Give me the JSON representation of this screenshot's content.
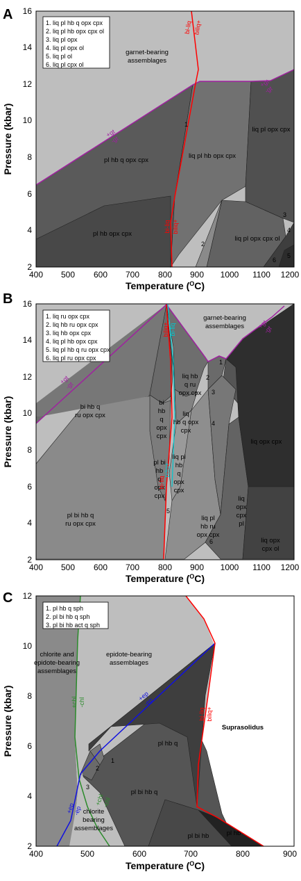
{
  "colors": {
    "garnet_bg": "#bebebe",
    "dark_field": "#4f4f4f",
    "darker_field": "#3c3c3c",
    "mid_field": "#6f6f6f",
    "light_field": "#8d8d8d",
    "solidus": "#ff0000",
    "garnet_line": "#a020a0",
    "biotite_cyan": "#00c8d0",
    "epidote_line": "#1010e0",
    "chlorite_line": "#2a8a2a"
  },
  "panels": [
    {
      "label": "A",
      "xlabel": "Temperature (°C)",
      "xlabel_pre": "Temperature (",
      "xlabel_sup": "O",
      "xlabel_post": "C)",
      "ylabel": "Pressure (kbar)",
      "xticks": [
        "400",
        "500",
        "600",
        "700",
        "800",
        "900",
        "1000",
        "1100",
        "1200"
      ],
      "yticks": [
        "2",
        "4",
        "6",
        "8",
        "10",
        "12",
        "14",
        "16"
      ],
      "legend": [
        "1. liq pl hb q opx cpx",
        "2. liq pl hb opx cpx ol",
        "3. liq pl opx",
        "4. liq pl opx ol",
        "5. liq pl ol",
        "6. liq pl cpx ol"
      ],
      "fields": {
        "garnet": [
          "garnet-bearing",
          "assemblages"
        ],
        "pl_hb_q_opx_cpx": "pl hb q opx cpx",
        "pl_hb_opx_cpx": "pl hb opx cpx",
        "liq_pl_hb_opx_cpx": "liq pl hb opx cpx",
        "liq_pl_opx_cpx": "liq pl opx cpx",
        "liq_pl_opx_cpx_ol": "liq pl opx cpx ol"
      },
      "numbers": [
        "1",
        "2",
        "3",
        "4",
        "5",
        "6"
      ],
      "reactions": {
        "plus_gt": "+gt",
        "minus_gt": "-gt",
        "bi": "bi",
        "plus_liq": "liq+",
        "minus_liq": "-liq"
      }
    },
    {
      "label": "B",
      "xlabel": "Temperature (°C)",
      "xlabel_pre": "Temperature (",
      "xlabel_sup": "O",
      "xlabel_post": "C)",
      "ylabel": "Pressure (kbar)",
      "xticks": [
        "400",
        "500",
        "600",
        "700",
        "800",
        "900",
        "1000",
        "1100",
        "1200"
      ],
      "yticks": [
        "2",
        "4",
        "6",
        "8",
        "10",
        "12",
        "14",
        "16"
      ],
      "legend": [
        "1. liq ru opx cpx",
        "2. liq hb ru opx cpx",
        "3. liq hb opx cpx",
        "4. liq pl hb opx cpx",
        "5. liq pl hb q ru opx cpx",
        "6. liq pl ru opx cpx"
      ],
      "fields": {
        "garnet": [
          "garnet-bearing",
          "assemblages"
        ],
        "bi_hb_q_ru": [
          "bi hb q",
          "ru opx cpx"
        ],
        "pl_bi_hb_q": [
          "pl bi hb q",
          "ru opx cpx"
        ],
        "bi_hb_q_col": [
          "bi",
          "hb",
          "q",
          "opx",
          "cpx"
        ],
        "pl_bi_hb_q_col": [
          "pl bi",
          "hb",
          "q",
          "opx",
          "cpx"
        ],
        "liq_hb_q_ru": [
          "liq hb",
          "q ru",
          "opx cpx"
        ],
        "liq_hb_q_opx": [
          "liq",
          "hb q opx",
          "cpx"
        ],
        "liq_pl_hb_q": [
          "liq pl",
          "hb",
          "q",
          "opx",
          "cpx"
        ],
        "liq_pl_hb_ru": [
          "liq pl",
          "hb ru",
          "opx cpx"
        ],
        "liq_opx_cpx_pl": [
          "liq",
          "opx",
          "cpx",
          "pl"
        ],
        "liq_opx_cpx": "liq opx cpx",
        "liq_opx_cpx_ol": [
          "liq opx",
          "cpx ol"
        ]
      },
      "numbers": [
        "1",
        "2",
        "3",
        "4",
        "5",
        "6"
      ],
      "reactions": {
        "plus_gt": "+gt",
        "minus_gt": "-gt",
        "bi": "bi",
        "plus_liq": "liq+",
        "minus_liq": "-liq"
      }
    },
    {
      "label": "C",
      "xlabel": "Temperature (°C)",
      "xlabel_pre": "Temperature (",
      "xlabel_sup": "O",
      "xlabel_post": "C)",
      "ylabel": "Pressure (kbar)",
      "xticks": [
        "400",
        "500",
        "600",
        "700",
        "800",
        "900"
      ],
      "yticks": [
        "2",
        "4",
        "6",
        "8",
        "10",
        "12"
      ],
      "legend": [
        "1. pl hb q sph",
        "2. pl bi hb q sph",
        "3. pl bi hb act q sph"
      ],
      "fields": {
        "chlorite_epidote": [
          "chlorite and",
          "epidote-bearing",
          "assemblages"
        ],
        "epidote": [
          "epidote-bearing",
          "assemblages"
        ],
        "chlorite": [
          "chlorite",
          "bearing",
          "assemblages"
        ],
        "pl_hb_q": "pl hb q",
        "pl_bi_hb_q": "pl bi hb q",
        "pl_bi_hb": "pl bi hb",
        "pl_hb": "pl hb",
        "suprasolidus": "Suprasolidus"
      },
      "numbers": [
        "1",
        "2",
        "3"
      ],
      "reactions": {
        "plus_ep": "+ep",
        "minus_ep": "-ep",
        "plus_chl": "+chl",
        "minus_chl": "-chl",
        "bi": "bi",
        "plus_liq": "liq+",
        "minus_liq": "-liq"
      }
    }
  ]
}
